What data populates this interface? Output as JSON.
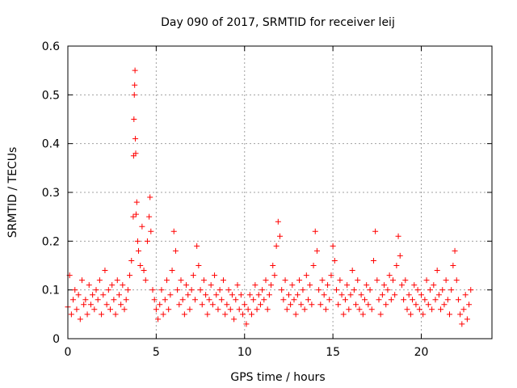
{
  "chart_data": {
    "type": "scatter",
    "title": "Day 090 of 2017, SRMTID for receiver leij",
    "xlabel": "GPS time / hours",
    "ylabel": "SRMTID / TECUs",
    "xlim": [
      0,
      24
    ],
    "ylim": [
      0,
      0.6
    ],
    "xticks": [
      0,
      5,
      10,
      15,
      20
    ],
    "yticks": [
      0,
      0.1,
      0.2,
      0.3,
      0.4,
      0.5,
      0.6
    ],
    "xtick_labels": [
      "0",
      "5",
      "10",
      "15",
      "20"
    ],
    "ytick_labels": [
      "0",
      "0.1",
      "0.2",
      "0.3",
      "0.4",
      "0.5",
      "0.6"
    ],
    "grid": true,
    "marker": "+",
    "series": [
      {
        "name": "SRMTID",
        "color": "#ff0000",
        "points": [
          [
            0.0,
            0.065
          ],
          [
            0.1,
            0.13
          ],
          [
            0.2,
            0.05
          ],
          [
            0.3,
            0.08
          ],
          [
            0.4,
            0.1
          ],
          [
            0.5,
            0.06
          ],
          [
            0.6,
            0.09
          ],
          [
            0.7,
            0.04
          ],
          [
            0.8,
            0.12
          ],
          [
            0.9,
            0.07
          ],
          [
            1.0,
            0.08
          ],
          [
            1.1,
            0.05
          ],
          [
            1.2,
            0.11
          ],
          [
            1.3,
            0.07
          ],
          [
            1.4,
            0.09
          ],
          [
            1.5,
            0.06
          ],
          [
            1.6,
            0.1
          ],
          [
            1.7,
            0.08
          ],
          [
            1.8,
            0.12
          ],
          [
            1.9,
            0.05
          ],
          [
            2.0,
            0.09
          ],
          [
            2.1,
            0.14
          ],
          [
            2.2,
            0.07
          ],
          [
            2.3,
            0.1
          ],
          [
            2.4,
            0.06
          ],
          [
            2.5,
            0.11
          ],
          [
            2.6,
            0.08
          ],
          [
            2.7,
            0.05
          ],
          [
            2.8,
            0.12
          ],
          [
            2.9,
            0.09
          ],
          [
            3.0,
            0.07
          ],
          [
            3.1,
            0.11
          ],
          [
            3.2,
            0.06
          ],
          [
            3.3,
            0.08
          ],
          [
            3.4,
            0.1
          ],
          [
            3.5,
            0.13
          ],
          [
            3.6,
            0.16
          ],
          [
            3.7,
            0.25
          ],
          [
            3.72,
            0.375
          ],
          [
            3.74,
            0.45
          ],
          [
            3.76,
            0.5
          ],
          [
            3.78,
            0.52
          ],
          [
            3.8,
            0.55
          ],
          [
            3.82,
            0.41
          ],
          [
            3.84,
            0.38
          ],
          [
            3.86,
            0.255
          ],
          [
            3.9,
            0.28
          ],
          [
            3.95,
            0.2
          ],
          [
            4.0,
            0.18
          ],
          [
            4.1,
            0.15
          ],
          [
            4.2,
            0.23
          ],
          [
            4.3,
            0.14
          ],
          [
            4.4,
            0.12
          ],
          [
            4.5,
            0.2
          ],
          [
            4.6,
            0.25
          ],
          [
            4.65,
            0.29
          ],
          [
            4.7,
            0.22
          ],
          [
            4.8,
            0.1
          ],
          [
            4.9,
            0.08
          ],
          [
            5.0,
            0.06
          ],
          [
            5.1,
            0.04
          ],
          [
            5.2,
            0.07
          ],
          [
            5.3,
            0.1
          ],
          [
            5.4,
            0.05
          ],
          [
            5.5,
            0.08
          ],
          [
            5.6,
            0.12
          ],
          [
            5.7,
            0.06
          ],
          [
            5.8,
            0.09
          ],
          [
            5.9,
            0.14
          ],
          [
            6.0,
            0.22
          ],
          [
            6.1,
            0.18
          ],
          [
            6.2,
            0.1
          ],
          [
            6.3,
            0.07
          ],
          [
            6.4,
            0.12
          ],
          [
            6.5,
            0.08
          ],
          [
            6.6,
            0.05
          ],
          [
            6.7,
            0.11
          ],
          [
            6.8,
            0.09
          ],
          [
            6.9,
            0.06
          ],
          [
            7.0,
            0.1
          ],
          [
            7.1,
            0.13
          ],
          [
            7.2,
            0.08
          ],
          [
            7.3,
            0.19
          ],
          [
            7.4,
            0.15
          ],
          [
            7.5,
            0.1
          ],
          [
            7.6,
            0.07
          ],
          [
            7.7,
            0.12
          ],
          [
            7.8,
            0.09
          ],
          [
            7.9,
            0.05
          ],
          [
            8.0,
            0.08
          ],
          [
            8.1,
            0.11
          ],
          [
            8.2,
            0.07
          ],
          [
            8.3,
            0.13
          ],
          [
            8.4,
            0.09
          ],
          [
            8.5,
            0.06
          ],
          [
            8.6,
            0.1
          ],
          [
            8.7,
            0.08
          ],
          [
            8.8,
            0.12
          ],
          [
            8.9,
            0.05
          ],
          [
            9.0,
            0.07
          ],
          [
            9.1,
            0.1
          ],
          [
            9.2,
            0.06
          ],
          [
            9.3,
            0.09
          ],
          [
            9.4,
            0.04
          ],
          [
            9.5,
            0.08
          ],
          [
            9.6,
            0.11
          ],
          [
            9.7,
            0.06
          ],
          [
            9.8,
            0.09
          ],
          [
            9.9,
            0.05
          ],
          [
            10.0,
            0.07
          ],
          [
            10.1,
            0.03
          ],
          [
            10.2,
            0.06
          ],
          [
            10.3,
            0.09
          ],
          [
            10.4,
            0.05
          ],
          [
            10.5,
            0.08
          ],
          [
            10.6,
            0.11
          ],
          [
            10.7,
            0.06
          ],
          [
            10.8,
            0.09
          ],
          [
            10.9,
            0.07
          ],
          [
            11.0,
            0.1
          ],
          [
            11.1,
            0.08
          ],
          [
            11.2,
            0.12
          ],
          [
            11.3,
            0.06
          ],
          [
            11.4,
            0.09
          ],
          [
            11.5,
            0.11
          ],
          [
            11.6,
            0.15
          ],
          [
            11.7,
            0.13
          ],
          [
            11.8,
            0.19
          ],
          [
            11.9,
            0.24
          ],
          [
            12.0,
            0.21
          ],
          [
            12.1,
            0.1
          ],
          [
            12.2,
            0.08
          ],
          [
            12.3,
            0.12
          ],
          [
            12.4,
            0.06
          ],
          [
            12.5,
            0.09
          ],
          [
            12.6,
            0.07
          ],
          [
            12.7,
            0.11
          ],
          [
            12.8,
            0.08
          ],
          [
            12.9,
            0.05
          ],
          [
            13.0,
            0.09
          ],
          [
            13.1,
            0.12
          ],
          [
            13.2,
            0.07
          ],
          [
            13.3,
            0.1
          ],
          [
            13.4,
            0.06
          ],
          [
            13.5,
            0.13
          ],
          [
            13.6,
            0.08
          ],
          [
            13.7,
            0.11
          ],
          [
            13.8,
            0.07
          ],
          [
            13.9,
            0.15
          ],
          [
            14.0,
            0.22
          ],
          [
            14.1,
            0.18
          ],
          [
            14.2,
            0.1
          ],
          [
            14.3,
            0.07
          ],
          [
            14.4,
            0.12
          ],
          [
            14.5,
            0.09
          ],
          [
            14.6,
            0.06
          ],
          [
            14.7,
            0.11
          ],
          [
            14.8,
            0.08
          ],
          [
            14.9,
            0.13
          ],
          [
            15.0,
            0.19
          ],
          [
            15.1,
            0.16
          ],
          [
            15.2,
            0.1
          ],
          [
            15.3,
            0.07
          ],
          [
            15.4,
            0.12
          ],
          [
            15.5,
            0.09
          ],
          [
            15.6,
            0.05
          ],
          [
            15.7,
            0.08
          ],
          [
            15.8,
            0.11
          ],
          [
            15.9,
            0.06
          ],
          [
            16.0,
            0.09
          ],
          [
            16.1,
            0.14
          ],
          [
            16.2,
            0.1
          ],
          [
            16.3,
            0.07
          ],
          [
            16.4,
            0.12
          ],
          [
            16.5,
            0.06
          ],
          [
            16.6,
            0.09
          ],
          [
            16.7,
            0.05
          ],
          [
            16.8,
            0.08
          ],
          [
            16.9,
            0.11
          ],
          [
            17.0,
            0.07
          ],
          [
            17.1,
            0.1
          ],
          [
            17.2,
            0.06
          ],
          [
            17.3,
            0.16
          ],
          [
            17.4,
            0.22
          ],
          [
            17.5,
            0.12
          ],
          [
            17.6,
            0.08
          ],
          [
            17.7,
            0.05
          ],
          [
            17.8,
            0.09
          ],
          [
            17.9,
            0.11
          ],
          [
            18.0,
            0.07
          ],
          [
            18.1,
            0.1
          ],
          [
            18.2,
            0.13
          ],
          [
            18.3,
            0.08
          ],
          [
            18.4,
            0.12
          ],
          [
            18.5,
            0.09
          ],
          [
            18.6,
            0.15
          ],
          [
            18.7,
            0.21
          ],
          [
            18.8,
            0.17
          ],
          [
            18.9,
            0.11
          ],
          [
            19.0,
            0.08
          ],
          [
            19.1,
            0.12
          ],
          [
            19.2,
            0.06
          ],
          [
            19.3,
            0.09
          ],
          [
            19.4,
            0.05
          ],
          [
            19.5,
            0.08
          ],
          [
            19.6,
            0.11
          ],
          [
            19.7,
            0.07
          ],
          [
            19.8,
            0.1
          ],
          [
            19.9,
            0.06
          ],
          [
            20.0,
            0.09
          ],
          [
            20.1,
            0.05
          ],
          [
            20.2,
            0.08
          ],
          [
            20.3,
            0.12
          ],
          [
            20.4,
            0.07
          ],
          [
            20.5,
            0.1
          ],
          [
            20.6,
            0.06
          ],
          [
            20.7,
            0.11
          ],
          [
            20.8,
            0.08
          ],
          [
            20.9,
            0.14
          ],
          [
            21.0,
            0.09
          ],
          [
            21.1,
            0.06
          ],
          [
            21.2,
            0.1
          ],
          [
            21.3,
            0.07
          ],
          [
            21.4,
            0.12
          ],
          [
            21.5,
            0.08
          ],
          [
            21.6,
            0.05
          ],
          [
            21.7,
            0.1
          ],
          [
            21.8,
            0.15
          ],
          [
            21.9,
            0.18
          ],
          [
            22.0,
            0.12
          ],
          [
            22.1,
            0.08
          ],
          [
            22.2,
            0.05
          ],
          [
            22.3,
            0.03
          ],
          [
            22.4,
            0.06
          ],
          [
            22.5,
            0.09
          ],
          [
            22.6,
            0.04
          ],
          [
            22.7,
            0.07
          ],
          [
            22.8,
            0.1
          ]
        ]
      }
    ]
  }
}
